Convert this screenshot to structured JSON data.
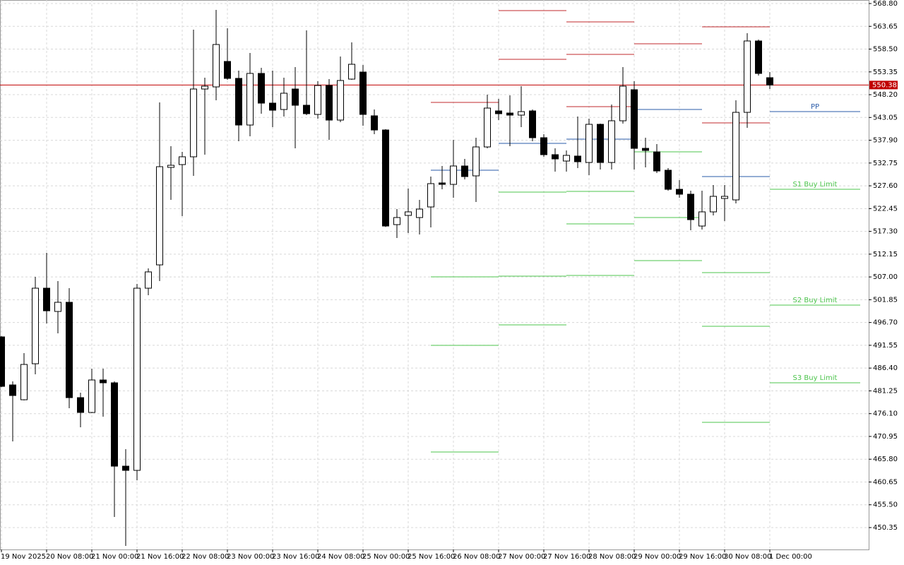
{
  "chart_data": {
    "type": "candlestick",
    "categories": [
      "19 Nov 2025",
      null,
      null,
      null,
      "20 Nov 08:00",
      null,
      null,
      null,
      "21 Nov 00:00",
      null,
      null,
      null,
      "21 Nov 16:00",
      null,
      null,
      null,
      "22 Nov 08:00",
      null,
      null,
      null,
      "23 Nov 00:00",
      null,
      null,
      null,
      "23 Nov 16:00",
      null,
      null,
      null,
      "24 Nov 08:00",
      null,
      null,
      null,
      "25 Nov 00:00",
      null,
      null,
      null,
      "25 Nov 16:00",
      null,
      null,
      null,
      "26 Nov 08:00",
      null,
      null,
      null,
      "27 Nov 00:00",
      null,
      null,
      null,
      "27 Nov 16:00",
      null,
      null,
      null,
      "28 Nov 08:00",
      null,
      null,
      null,
      "29 Nov 00:00",
      null,
      null,
      null,
      "29 Nov 16:00",
      null,
      null,
      null,
      "30 Nov 08:00",
      null,
      null,
      null,
      "1 Dec 00:00"
    ],
    "open": [
      493.45,
      482.59,
      479.24,
      487.38,
      504.46,
      499.2,
      501.27,
      479.72,
      476.37,
      483.71,
      483.07,
      464.23,
      463.28,
      504.46,
      509.73,
      531.76,
      532.4,
      534.16,
      549.48,
      549.96,
      555.71,
      551.88,
      541.34,
      553.0,
      546.29,
      544.85,
      549.48,
      545.81,
      543.74,
      550.28,
      542.46,
      551.72,
      553.31,
      543.42,
      540.22,
      518.83,
      520.91,
      520.43,
      522.82,
      528.25,
      527.93,
      532.08,
      529.85,
      536.39,
      544.53,
      544.05,
      543.58,
      544.53,
      538.47,
      534.64,
      533.2,
      534.32,
      532.88,
      541.5,
      532.88,
      542.3,
      549.32,
      536.07,
      535.27,
      531.12,
      526.81,
      525.7,
      518.51,
      521.71,
      524.74,
      524.42,
      544.21,
      560.34,
      552.04
    ],
    "high": [
      493.62,
      483.39,
      489.78,
      507.02,
      512.45,
      506.06,
      504.46,
      480.84,
      486.26,
      486.26,
      483.39,
      468.07,
      505.42,
      508.93,
      546.45,
      536.55,
      535.27,
      562.89,
      552.04,
      567.36,
      563.21,
      553.63,
      557.62,
      554.27,
      553.63,
      552.04,
      554.43,
      562.73,
      551.24,
      551.72,
      556.83,
      560.02,
      554.91,
      544.85,
      540.4,
      522.34,
      526.97,
      524.42,
      529.69,
      532.08,
      537.99,
      533.68,
      538.47,
      548.21,
      547.25,
      548.05,
      550.12,
      544.85,
      539.27,
      536.07,
      535.59,
      543.26,
      542.78,
      541.66,
      545.97,
      554.43,
      551.24,
      538.47,
      537.03,
      531.6,
      528.89,
      526.49,
      526.49,
      527.77,
      527.77,
      546.93,
      562.09,
      560.66,
      553.31
    ],
    "low": [
      482.1,
      469.82,
      479.1,
      484.99,
      496.48,
      494.25,
      477.32,
      473.01,
      476.21,
      475.41,
      452.74,
      446.19,
      461.04,
      502.87,
      506.06,
      524.42,
      520.75,
      529.85,
      534.64,
      546.93,
      551.56,
      537.67,
      538.79,
      543.9,
      540.86,
      543.26,
      536.07,
      543.58,
      542.78,
      537.99,
      541.98,
      551.56,
      541.18,
      539.27,
      518.3,
      515.8,
      516.92,
      516.6,
      518.19,
      526.81,
      524.9,
      529.05,
      523.94,
      536.07,
      542.46,
      536.55,
      540.86,
      537.67,
      534.16,
      530.8,
      530.8,
      531.6,
      530.01,
      531.28,
      531.28,
      541.66,
      531.28,
      531.76,
      530.49,
      526.49,
      524.9,
      517.55,
      517.71,
      520.91,
      519.63,
      523.62,
      540.7,
      552.52,
      549.48
    ],
    "close": [
      482.27,
      480.2,
      487.22,
      504.46,
      499.35,
      501.27,
      479.72,
      476.37,
      483.71,
      483.07,
      464.23,
      463.28,
      504.46,
      508.14,
      531.92,
      532.24,
      534.16,
      549.48,
      550.12,
      559.54,
      551.88,
      541.34,
      553.0,
      546.29,
      544.69,
      548.53,
      545.81,
      543.9,
      550.28,
      542.46,
      551.4,
      555.07,
      543.74,
      540.22,
      518.51,
      520.43,
      521.71,
      522.34,
      528.09,
      527.93,
      532.08,
      529.69,
      536.39,
      545.17,
      543.9,
      543.58,
      544.37,
      538.47,
      534.64,
      533.68,
      534.48,
      533.04,
      541.5,
      532.88,
      542.3,
      550.12,
      536.07,
      535.59,
      530.96,
      526.81,
      525.7,
      519.95,
      521.71,
      525.22,
      525.22,
      544.21,
      560.34,
      553.0,
      550.38
    ],
    "bull_color": "#ffffff",
    "bear_color": "#000000",
    "last_price": 550.38,
    "last_price_color": "#c00000",
    "ylim": [
      445.4,
      569.6
    ],
    "yticks": [
      {
        "value": 568.8,
        "label": "568.80"
      },
      {
        "value": 563.65,
        "label": "563.65"
      },
      {
        "value": 558.5,
        "label": "558.50"
      },
      {
        "value": 553.35,
        "label": "553.35"
      },
      {
        "value": 548.2,
        "label": "548.20"
      },
      {
        "value": 543.05,
        "label": "543.05"
      },
      {
        "value": 537.9,
        "label": "537.90"
      },
      {
        "value": 532.75,
        "label": "532.75"
      },
      {
        "value": 527.6,
        "label": "527.60"
      },
      {
        "value": 522.45,
        "label": "522.45"
      },
      {
        "value": 517.3,
        "label": "517.30"
      },
      {
        "value": 512.15,
        "label": "512.15"
      },
      {
        "value": 507,
        "label": "507.00"
      },
      {
        "value": 501.85,
        "label": "501.85"
      },
      {
        "value": 496.7,
        "label": "496.70"
      },
      {
        "value": 491.55,
        "label": "491.55"
      },
      {
        "value": 486.4,
        "label": "486.40"
      },
      {
        "value": 481.25,
        "label": "481.25"
      },
      {
        "value": 476.1,
        "label": "476.10"
      },
      {
        "value": 470.95,
        "label": "470.95"
      },
      {
        "value": 465.8,
        "label": "465.80"
      },
      {
        "value": 460.65,
        "label": "460.65"
      },
      {
        "value": 455.5,
        "label": "455.50"
      },
      {
        "value": 450.35,
        "label": "450.35"
      }
    ],
    "grid": true,
    "pivots": {
      "periods": [
        {
          "resistance": [
            546.45
          ],
          "pivot": 531.12,
          "support": [
            507.02,
            491.53,
            467.43
          ]
        },
        {
          "resistance": [
            556.19,
            567.2
          ],
          "pivot": 537.19,
          "support": [
            526.18,
            507.18,
            496.16
          ]
        },
        {
          "resistance": [
            545.49,
            557.31,
            564.65
          ],
          "pivot": 538.15,
          "support": [
            526.34,
            519.0,
            507.34
          ]
        },
        {
          "resistance": [
            559.7
          ],
          "pivot": 544.85,
          "support": [
            535.27,
            520.43,
            510.69
          ]
        },
        {
          "resistance": [
            541.82,
            563.53
          ],
          "pivot": 529.69,
          "support": [
            507.98,
            495.84,
            474.13
          ]
        },
        {
          "resistance": [],
          "pivot": 544.37,
          "support": [
            526.81,
            500.63,
            483.07
          ]
        }
      ],
      "pivot_label": "PP",
      "support_labels": [
        "S1 Buy Limit",
        "S2 Buy Limit",
        "S3 Buy Limit"
      ],
      "resistance_color": "#c0282d",
      "pivot_color": "#2a5ba8",
      "support_color": "#4cc44c"
    }
  }
}
